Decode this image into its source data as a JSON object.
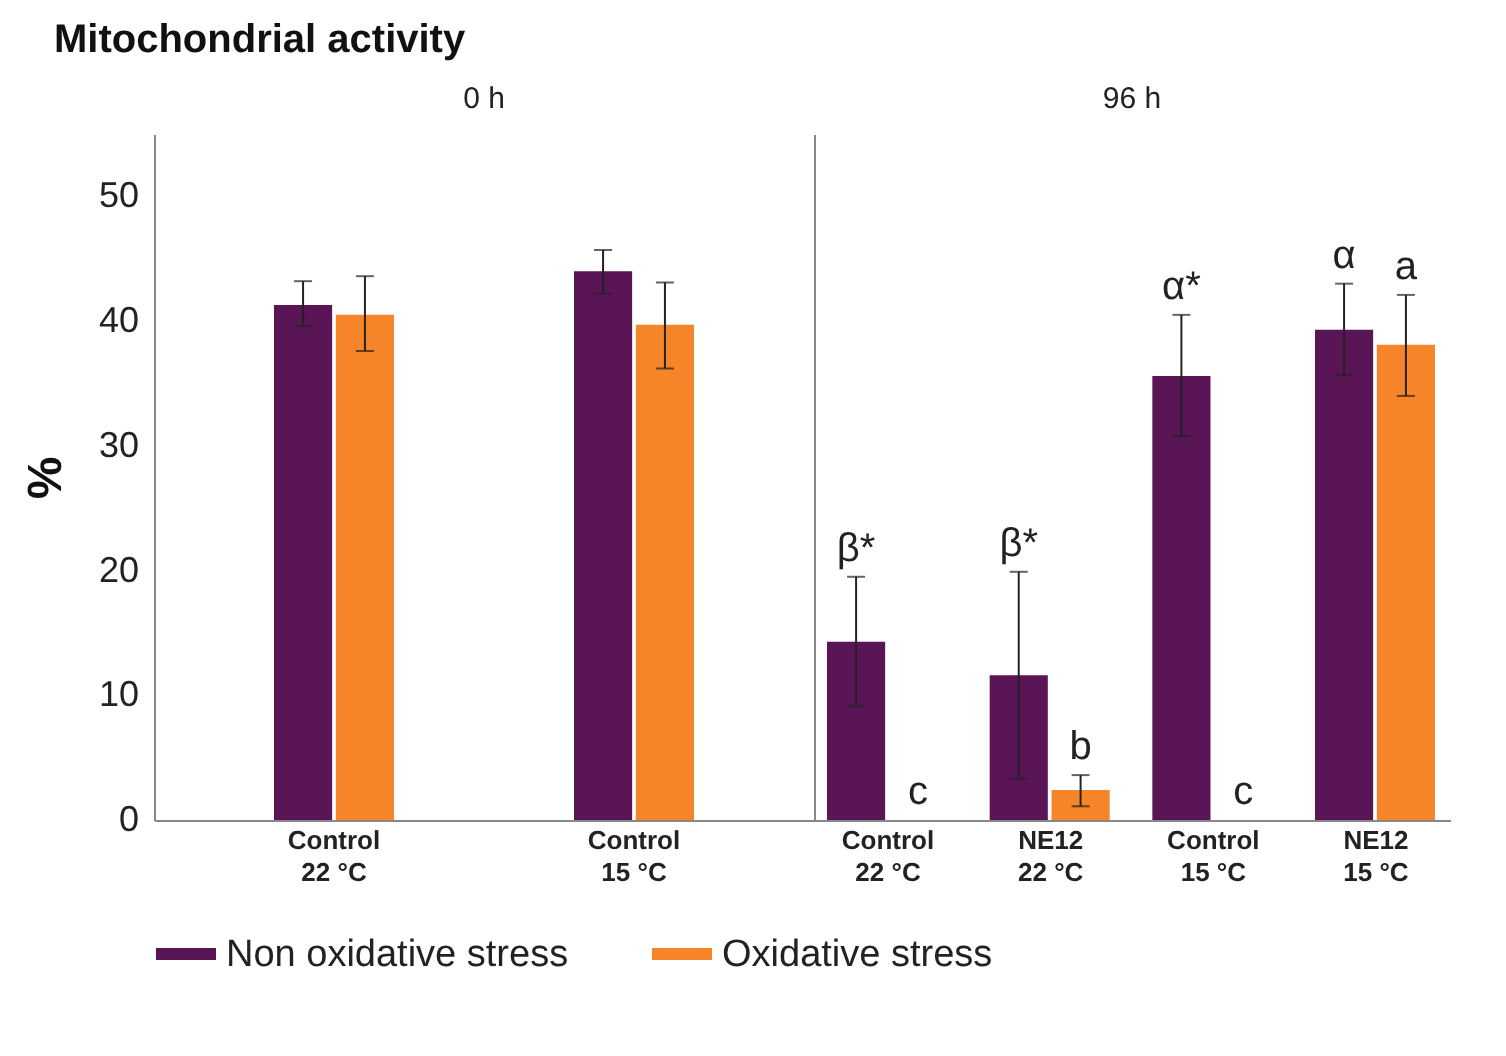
{
  "chart_data": [
    {
      "type": "bar",
      "title": "Mitochondrial activity",
      "subtitle": "0 h",
      "ylabel": "%",
      "categories": [
        "Control\n22 °C",
        "Control\n15 °C"
      ],
      "ylim": [
        0,
        55
      ],
      "yticks": [
        0,
        10,
        20,
        30,
        40,
        50
      ],
      "legend": "bottom",
      "series": [
        {
          "name": "Non oxidative stress",
          "color": "#5a1557",
          "values": [
            41.3,
            44.0
          ],
          "errors": [
            [
              39.6,
              43.2
            ],
            [
              42.2,
              45.7
            ]
          ]
        },
        {
          "name": "Oxidative stress",
          "color": "#f68428",
          "values": [
            40.5,
            39.7
          ],
          "errors": [
            [
              37.6,
              43.6
            ],
            [
              36.2,
              43.1
            ]
          ]
        }
      ]
    },
    {
      "type": "bar",
      "subtitle": "96 h",
      "categories": [
        "Control\n22 °C",
        "NE12\n22 °C",
        "Control\n15 °C",
        "NE12\n15 °C"
      ],
      "ylim": [
        0,
        55
      ],
      "yticks": [
        0,
        10,
        20,
        30,
        40,
        50
      ],
      "tick_labels": "x",
      "legend": "bottom",
      "series": [
        {
          "name": "Non oxidative stress",
          "color": "#5a1557",
          "values": [
            14.3,
            11.6,
            35.6,
            39.3
          ],
          "errors": [
            [
              9.1,
              19.5
            ],
            [
              3.3,
              19.9
            ],
            [
              30.8,
              40.5
            ],
            [
              35.7,
              43.0
            ]
          ],
          "value_labels": [
            "β*",
            "β*",
            "α*",
            "α"
          ]
        },
        {
          "name": "Oxidative stress",
          "color": "#f68428",
          "values": [
            0,
            2.4,
            0,
            38.1
          ],
          "errors": [
            null,
            [
              1.1,
              3.6
            ],
            null,
            [
              34.0,
              42.1
            ]
          ],
          "value_labels": [
            "c",
            "b",
            "c",
            "a"
          ]
        }
      ]
    }
  ]
}
